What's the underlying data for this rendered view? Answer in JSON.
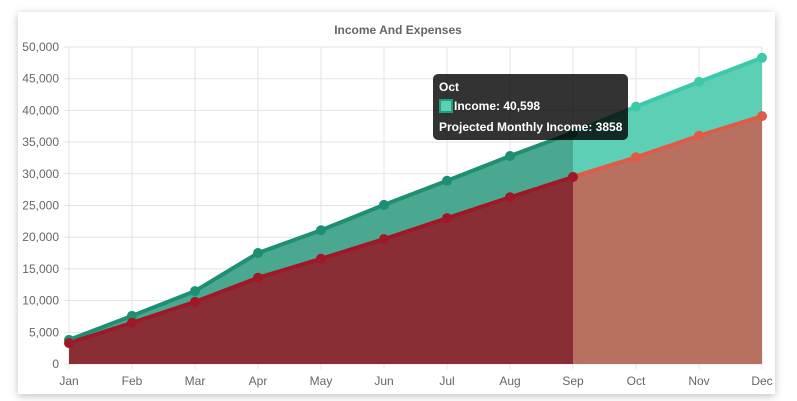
{
  "chart_data": {
    "type": "area",
    "title": "Income And Expenses",
    "categories": [
      "Jan",
      "Feb",
      "Mar",
      "Apr",
      "May",
      "Jun",
      "Jul",
      "Aug",
      "Sep",
      "Oct",
      "Nov",
      "Dec"
    ],
    "ylim": [
      0,
      50000
    ],
    "yticks": [
      "0",
      "5,000",
      "10,000",
      "15,000",
      "20,000",
      "25,000",
      "30,000",
      "35,000",
      "40,000",
      "45,000",
      "50,000"
    ],
    "grid": true,
    "actual_through": "Sep",
    "series": [
      {
        "name": "Income",
        "values": [
          3800,
          7600,
          11500,
          17500,
          21100,
          25100,
          28900,
          32800,
          36500,
          40598,
          44500,
          48300
        ],
        "color": "#1f8f74",
        "fill": "#4aa891",
        "projected_color": "#3cc9a8",
        "projected_fill": "#5ccfb5"
      },
      {
        "values": [
          3300,
          6500,
          9800,
          13600,
          16600,
          19700,
          23000,
          26300,
          29500,
          32600,
          36000,
          39100
        ],
        "color": "#a01828",
        "fill": "#8a2e35",
        "projected_color": "#e05a48",
        "projected_fill": "#b87060"
      }
    ]
  },
  "tooltip": {
    "title": "Oct",
    "line1": "Income: 40,598",
    "line2": "Projected Monthly Income: 3858"
  }
}
